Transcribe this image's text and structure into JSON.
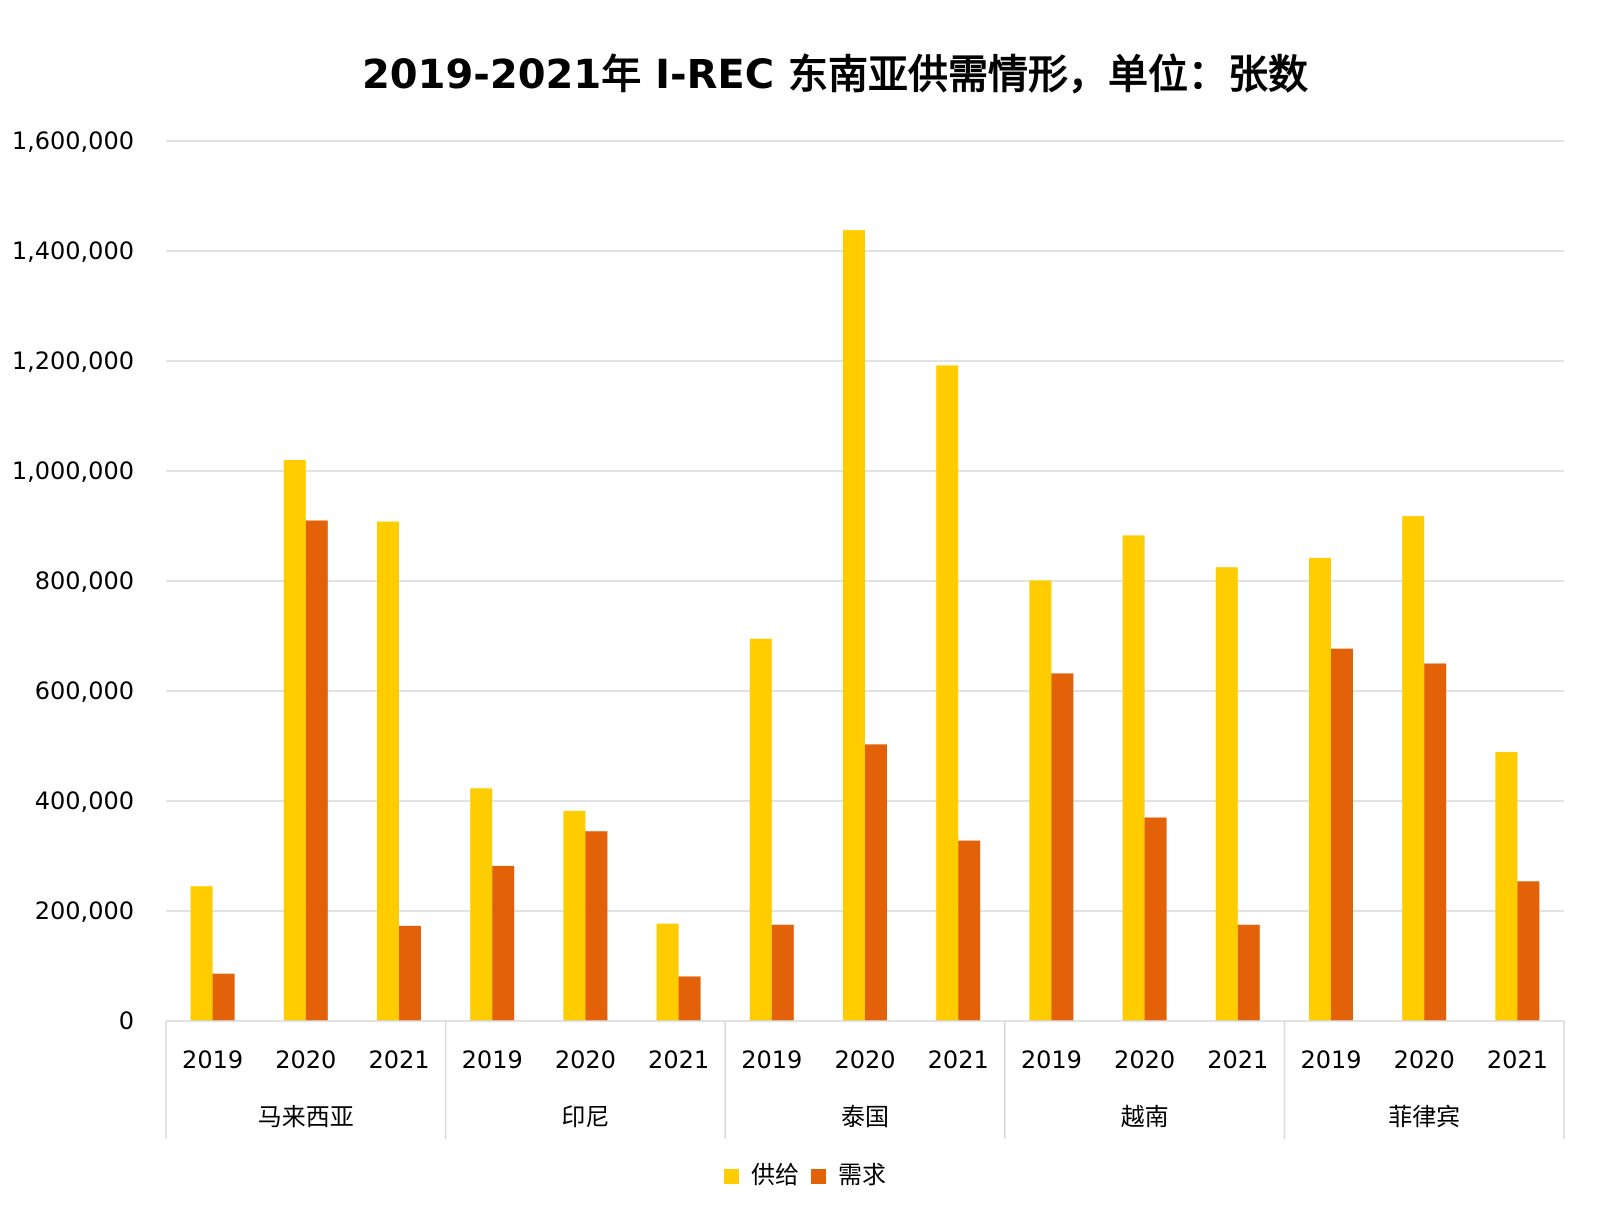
{
  "chart_data": {
    "type": "bar",
    "title": "2019-2021年 I-REC 东南亚供需情形，单位：张数",
    "xlabel": "",
    "ylabel": "",
    "ylim": [
      0,
      1600000
    ],
    "yticks": [
      0,
      200000,
      400000,
      600000,
      800000,
      1000000,
      1200000,
      1400000,
      1600000
    ],
    "ytick_labels": [
      "0",
      "200,000",
      "400,000",
      "600,000",
      "800,000",
      "1,000,000",
      "1,200,000",
      "1,400,000",
      "1,600,000"
    ],
    "grid": true,
    "legend_position": "bottom",
    "groups": [
      {
        "label": "马来西亚",
        "years": [
          "2019",
          "2020",
          "2021"
        ]
      },
      {
        "label": "印尼",
        "years": [
          "2019",
          "2020",
          "2021"
        ]
      },
      {
        "label": "泰国",
        "years": [
          "2019",
          "2020",
          "2021"
        ]
      },
      {
        "label": "越南",
        "years": [
          "2019",
          "2020",
          "2021"
        ]
      },
      {
        "label": "菲律宾",
        "years": [
          "2019",
          "2020",
          "2021"
        ]
      }
    ],
    "series": [
      {
        "name": "供给",
        "color": "#FFCC00",
        "values": [
          245000,
          1020000,
          908000,
          423000,
          382000,
          177000,
          695000,
          1438000,
          1192000,
          801000,
          883000,
          825000,
          842000,
          918000,
          489000
        ]
      },
      {
        "name": "需求",
        "color": "#E36209",
        "values": [
          86000,
          910000,
          173000,
          282000,
          345000,
          81000,
          175000,
          503000,
          328000,
          632000,
          370000,
          175000,
          677000,
          650000,
          254000
        ]
      }
    ]
  }
}
